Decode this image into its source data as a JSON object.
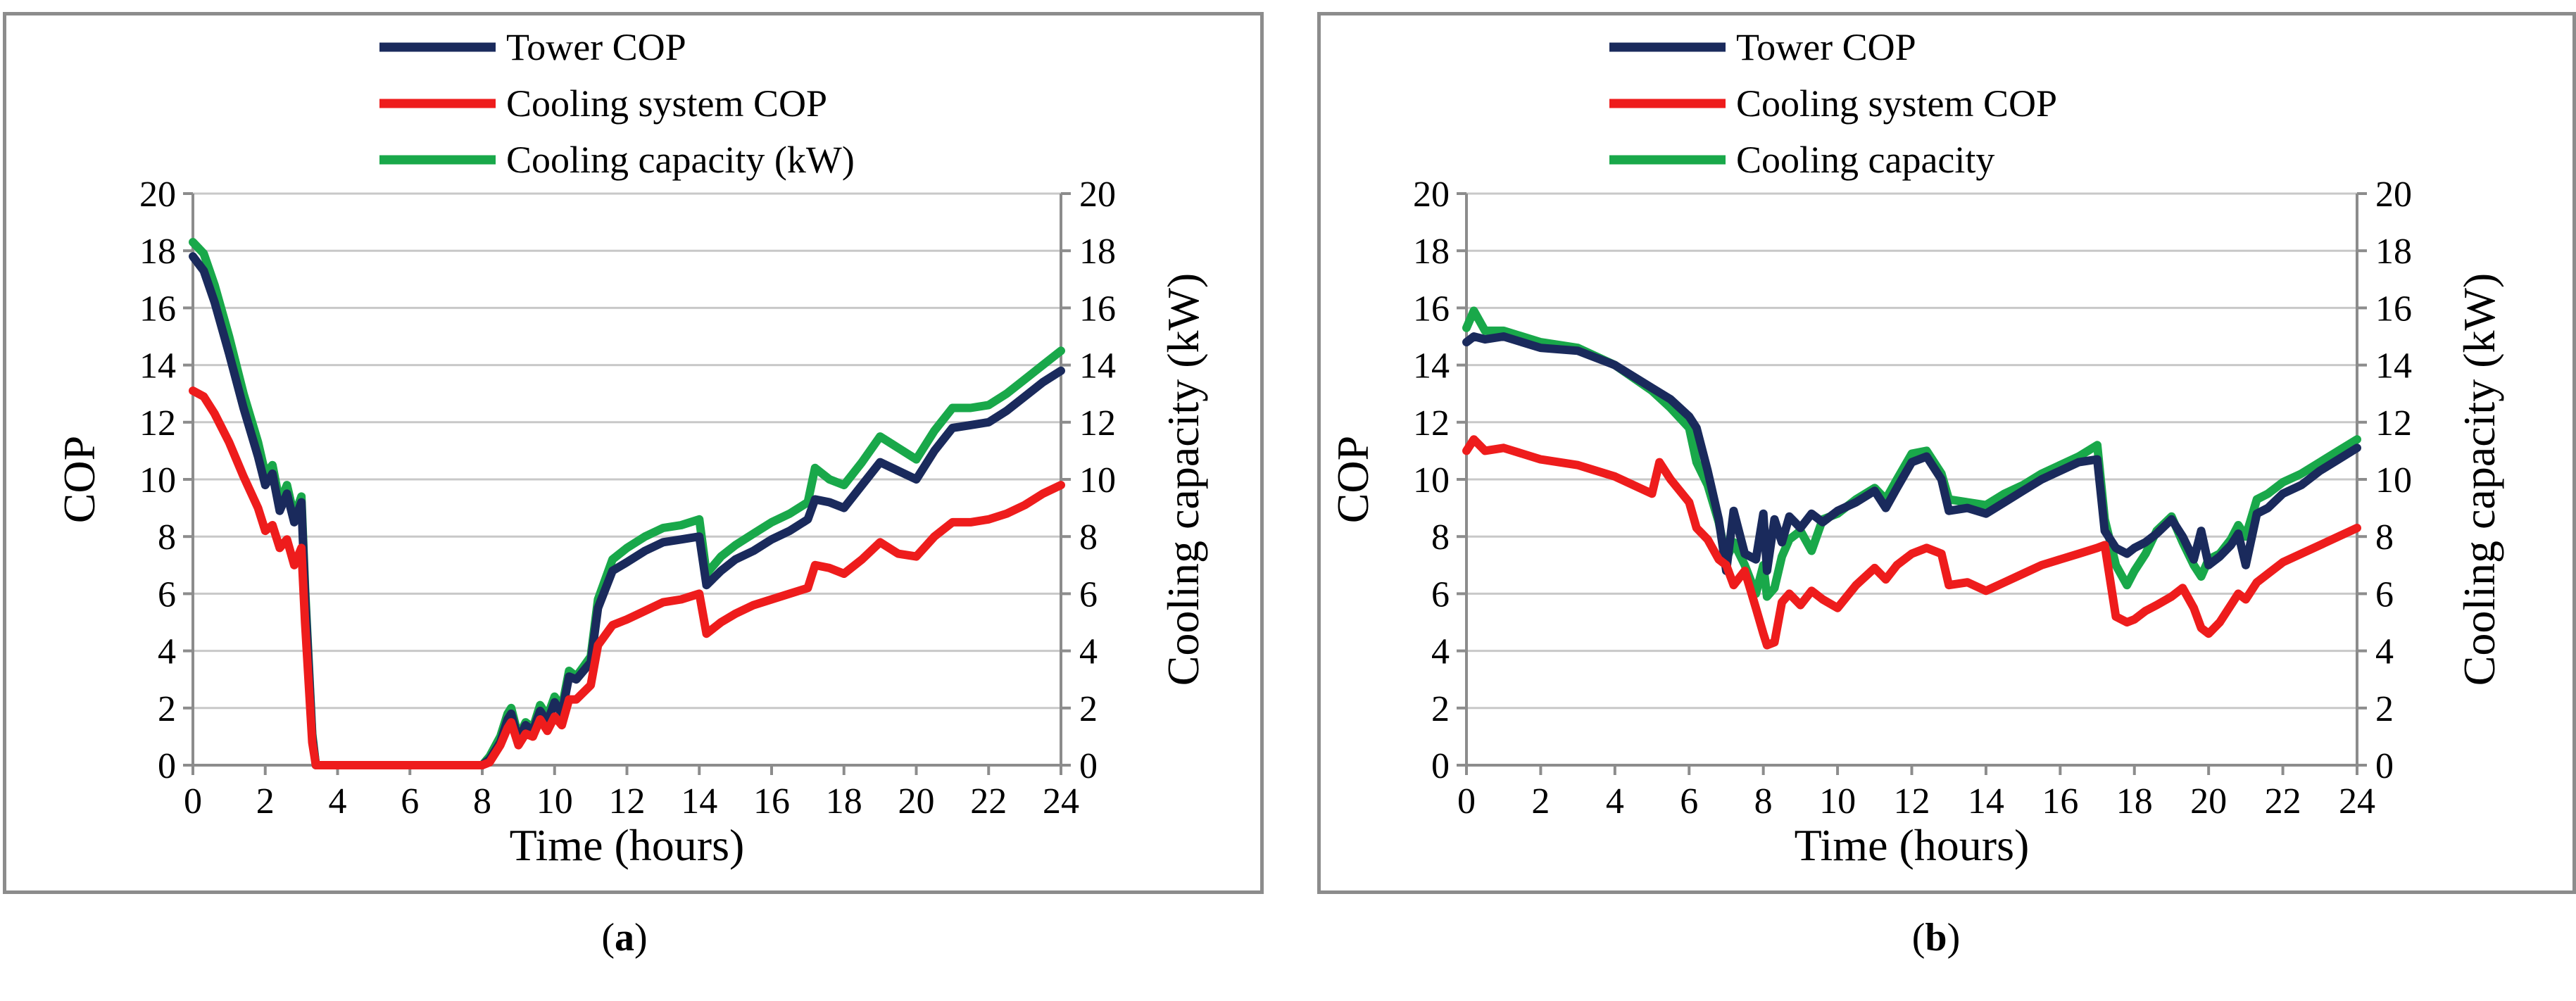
{
  "colors": {
    "tower": "#1a2a5c",
    "cooling_system": "#ee1c1c",
    "capacity": "#19a84a",
    "grid": "#c8c8c8",
    "axis": "#8c8c8c",
    "frame": "#8c8c8c"
  },
  "captions": {
    "a_letter": "a",
    "b_letter": "b"
  },
  "chart_data": [
    {
      "type": "line",
      "id": "a",
      "xlabel": "Time (hours)",
      "ylabel": "COP",
      "y2label": "Cooling capacity (kW)",
      "xlim": [
        0,
        24
      ],
      "ylim": [
        0,
        20
      ],
      "y2lim": [
        0,
        20
      ],
      "xticks": [
        "0",
        "2",
        "4",
        "6",
        "8",
        "10",
        "12",
        "14",
        "16",
        "18",
        "20",
        "22",
        "24"
      ],
      "yticks": [
        "0",
        "2",
        "4",
        "6",
        "8",
        "10",
        "12",
        "14",
        "16",
        "18",
        "20"
      ],
      "y2ticks": [
        "0",
        "2",
        "4",
        "6",
        "8",
        "10",
        "12",
        "14",
        "16",
        "18",
        "20"
      ],
      "legend_position": "top-center",
      "grid": true,
      "series": [
        {
          "name": "Tower COP",
          "color_key": "tower",
          "axis": "left",
          "x": [
            0,
            0.3,
            0.6,
            1,
            1.4,
            1.8,
            2,
            2.2,
            2.4,
            2.6,
            2.8,
            3,
            3.1,
            3.3,
            3.4,
            4,
            5,
            6,
            7,
            8,
            8.2,
            8.5,
            8.7,
            8.8,
            9,
            9.2,
            9.4,
            9.6,
            9.8,
            10,
            10.2,
            10.4,
            10.6,
            11,
            11.2,
            11.6,
            12,
            12.5,
            13,
            13.5,
            14,
            14.2,
            14.6,
            15,
            15.5,
            16,
            16.5,
            17,
            17.2,
            17.6,
            18,
            18.5,
            19,
            19.5,
            20,
            20.5,
            21,
            21.5,
            22,
            22.5,
            23,
            23.5,
            24
          ],
          "y": [
            17.8,
            17.3,
            16.2,
            14.4,
            12.5,
            10.8,
            9.8,
            10.2,
            8.9,
            9.5,
            8.5,
            9.2,
            6.0,
            1.0,
            0,
            0,
            0,
            0,
            0,
            0,
            0.2,
            0.8,
            1.6,
            1.8,
            0.9,
            1.4,
            1.2,
            1.9,
            1.5,
            2.2,
            1.8,
            3.1,
            3.0,
            3.6,
            5.5,
            6.8,
            7.1,
            7.5,
            7.8,
            7.9,
            8.0,
            6.3,
            6.8,
            7.2,
            7.5,
            7.9,
            8.2,
            8.6,
            9.3,
            9.2,
            9.0,
            9.8,
            10.6,
            10.3,
            10.0,
            11.0,
            11.8,
            11.9,
            12.0,
            12.4,
            12.9,
            13.4,
            13.8
          ]
        },
        {
          "name": "Cooling system COP",
          "color_key": "cooling_system",
          "axis": "left",
          "x": [
            0,
            0.3,
            0.6,
            1,
            1.4,
            1.8,
            2,
            2.2,
            2.4,
            2.6,
            2.8,
            3,
            3.1,
            3.3,
            3.4,
            4,
            5,
            6,
            7,
            8,
            8.2,
            8.5,
            8.7,
            8.8,
            9,
            9.2,
            9.4,
            9.6,
            9.8,
            10,
            10.2,
            10.4,
            10.6,
            11,
            11.2,
            11.6,
            12,
            12.5,
            13,
            13.5,
            14,
            14.2,
            14.6,
            15,
            15.5,
            16,
            16.5,
            17,
            17.2,
            17.6,
            18,
            18.5,
            19,
            19.5,
            20,
            20.5,
            21,
            21.5,
            22,
            22.5,
            23,
            23.5,
            24
          ],
          "y": [
            13.1,
            12.9,
            12.3,
            11.3,
            10.1,
            9.0,
            8.2,
            8.4,
            7.6,
            7.9,
            7.0,
            7.6,
            5.0,
            0.8,
            0,
            0,
            0,
            0,
            0,
            0,
            0.1,
            0.7,
            1.3,
            1.5,
            0.7,
            1.1,
            1.0,
            1.6,
            1.2,
            1.7,
            1.4,
            2.3,
            2.3,
            2.8,
            4.2,
            4.9,
            5.1,
            5.4,
            5.7,
            5.8,
            6.0,
            4.6,
            5.0,
            5.3,
            5.6,
            5.8,
            6.0,
            6.2,
            7.0,
            6.9,
            6.7,
            7.2,
            7.8,
            7.4,
            7.3,
            8.0,
            8.5,
            8.5,
            8.6,
            8.8,
            9.1,
            9.5,
            9.8
          ]
        },
        {
          "name": "Cooling capacity (kW)",
          "color_key": "capacity",
          "axis": "right",
          "x": [
            0,
            0.3,
            0.6,
            1,
            1.4,
            1.8,
            2,
            2.2,
            2.4,
            2.6,
            2.8,
            3,
            3.1,
            3.3,
            3.4,
            4,
            5,
            6,
            7,
            8,
            8.2,
            8.5,
            8.7,
            8.8,
            9,
            9.2,
            9.4,
            9.6,
            9.8,
            10,
            10.2,
            10.4,
            10.6,
            11,
            11.2,
            11.6,
            12,
            12.5,
            13,
            13.5,
            14,
            14.2,
            14.6,
            15,
            15.5,
            16,
            16.5,
            17,
            17.2,
            17.6,
            18,
            18.5,
            19,
            19.5,
            20,
            20.5,
            21,
            21.5,
            22,
            22.5,
            23,
            23.5,
            24
          ],
          "y": [
            18.3,
            17.9,
            16.8,
            15.0,
            13.0,
            11.3,
            10.2,
            10.5,
            9.2,
            9.8,
            8.7,
            9.4,
            6.2,
            1.1,
            0,
            0,
            0,
            0,
            0,
            0,
            0.3,
            1.0,
            1.8,
            2.0,
            1.0,
            1.5,
            1.3,
            2.1,
            1.7,
            2.4,
            2.0,
            3.3,
            3.1,
            3.8,
            5.8,
            7.2,
            7.6,
            8.0,
            8.3,
            8.4,
            8.6,
            6.7,
            7.3,
            7.7,
            8.1,
            8.5,
            8.8,
            9.2,
            10.4,
            10.0,
            9.8,
            10.6,
            11.5,
            11.1,
            10.7,
            11.7,
            12.5,
            12.5,
            12.6,
            13.0,
            13.5,
            14.0,
            14.5
          ]
        }
      ]
    },
    {
      "type": "line",
      "id": "b",
      "xlabel": "Time (hours)",
      "ylabel": "COP",
      "y2label": "Cooling capacity (kW)",
      "xlim": [
        0,
        24
      ],
      "ylim": [
        0,
        20
      ],
      "y2lim": [
        0,
        20
      ],
      "xticks": [
        "0",
        "2",
        "4",
        "6",
        "8",
        "10",
        "12",
        "14",
        "16",
        "18",
        "20",
        "22",
        "24"
      ],
      "yticks": [
        "0",
        "2",
        "4",
        "6",
        "8",
        "10",
        "12",
        "14",
        "16",
        "18",
        "20"
      ],
      "y2ticks": [
        "0",
        "2",
        "4",
        "6",
        "8",
        "10",
        "12",
        "14",
        "16",
        "18",
        "20"
      ],
      "legend_position": "top-center",
      "grid": true,
      "series": [
        {
          "name": "Tower COP",
          "color_key": "tower",
          "axis": "left",
          "x": [
            0,
            0.2,
            0.5,
            1,
            2,
            3,
            4,
            5,
            5.5,
            6,
            6.2,
            6.5,
            6.8,
            7,
            7.2,
            7.5,
            7.8,
            8,
            8.1,
            8.3,
            8.5,
            8.7,
            9,
            9.3,
            9.6,
            10,
            10.5,
            11,
            11.3,
            11.6,
            12,
            12.4,
            12.8,
            13,
            13.5,
            14,
            14.5,
            15,
            15.5,
            16,
            16.5,
            17,
            17.2,
            17.5,
            17.8,
            18,
            18.3,
            18.6,
            19,
            19.3,
            19.6,
            19.8,
            20,
            20.3,
            20.6,
            20.8,
            21,
            21.3,
            21.6,
            22,
            22.5,
            23,
            23.5,
            24
          ],
          "y": [
            14.8,
            15.0,
            14.9,
            15.0,
            14.6,
            14.5,
            14.0,
            13.2,
            12.8,
            12.2,
            11.8,
            10.3,
            8.6,
            6.8,
            8.9,
            7.4,
            7.2,
            8.8,
            6.8,
            8.6,
            7.8,
            8.7,
            8.3,
            8.8,
            8.5,
            8.9,
            9.2,
            9.6,
            9.0,
            9.7,
            10.6,
            10.8,
            10.0,
            8.9,
            9.0,
            8.8,
            9.2,
            9.6,
            10.0,
            10.3,
            10.6,
            10.7,
            8.2,
            7.6,
            7.4,
            7.6,
            7.8,
            8.1,
            8.6,
            8.0,
            7.2,
            8.2,
            7.0,
            7.3,
            7.7,
            8.1,
            7.0,
            8.8,
            9.0,
            9.5,
            9.8,
            10.3,
            10.7,
            11.1
          ]
        },
        {
          "name": "Cooling system COP",
          "color_key": "cooling_system",
          "axis": "left",
          "x": [
            0,
            0.2,
            0.5,
            1,
            2,
            3,
            4,
            5,
            5.2,
            5.5,
            6,
            6.2,
            6.5,
            6.8,
            7,
            7.2,
            7.5,
            7.8,
            8,
            8.1,
            8.3,
            8.5,
            8.7,
            9,
            9.3,
            9.6,
            10,
            10.5,
            11,
            11.3,
            11.6,
            12,
            12.4,
            12.8,
            13,
            13.5,
            14,
            14.5,
            15,
            15.5,
            16,
            16.5,
            17,
            17.2,
            17.5,
            17.8,
            18,
            18.3,
            18.6,
            19,
            19.3,
            19.6,
            19.8,
            20,
            20.3,
            20.6,
            20.8,
            21,
            21.3,
            21.6,
            22,
            22.5,
            23,
            23.5,
            24
          ],
          "y": [
            11.0,
            11.4,
            11.0,
            11.1,
            10.7,
            10.5,
            10.1,
            9.5,
            10.6,
            10.0,
            9.2,
            8.3,
            7.9,
            7.2,
            7.0,
            6.3,
            6.8,
            5.5,
            4.6,
            4.2,
            4.3,
            5.7,
            6.0,
            5.6,
            6.1,
            5.8,
            5.5,
            6.3,
            6.9,
            6.5,
            7.0,
            7.4,
            7.6,
            7.4,
            6.3,
            6.4,
            6.1,
            6.4,
            6.7,
            7.0,
            7.2,
            7.4,
            7.6,
            7.7,
            5.2,
            5.0,
            5.1,
            5.4,
            5.6,
            5.9,
            6.2,
            5.5,
            4.8,
            4.6,
            5.0,
            5.6,
            6.0,
            5.8,
            6.4,
            6.7,
            7.1,
            7.4,
            7.7,
            8.0,
            8.3
          ]
        },
        {
          "name": "Cooling capacity",
          "color_key": "capacity",
          "axis": "right",
          "x": [
            0,
            0.2,
            0.5,
            1,
            2,
            3,
            4,
            5,
            5.5,
            6,
            6.2,
            6.5,
            6.8,
            7,
            7.2,
            7.5,
            7.8,
            8,
            8.1,
            8.3,
            8.5,
            8.7,
            9,
            9.3,
            9.6,
            10,
            10.5,
            11,
            11.3,
            11.6,
            12,
            12.4,
            12.8,
            13,
            13.5,
            14,
            14.5,
            15,
            15.5,
            16,
            16.5,
            17,
            17.2,
            17.5,
            17.8,
            18,
            18.3,
            18.6,
            19,
            19.3,
            19.6,
            19.8,
            20,
            20.3,
            20.6,
            20.8,
            21,
            21.3,
            21.6,
            22,
            22.5,
            23,
            23.5,
            24
          ],
          "y": [
            15.3,
            15.9,
            15.2,
            15.2,
            14.8,
            14.6,
            14.0,
            13.1,
            12.5,
            11.8,
            10.6,
            9.8,
            8.5,
            7.2,
            7.8,
            7.0,
            6.0,
            7.0,
            5.9,
            6.2,
            7.3,
            7.9,
            8.2,
            7.5,
            8.6,
            8.8,
            9.3,
            9.7,
            9.3,
            10.0,
            10.9,
            11.0,
            10.2,
            9.3,
            9.2,
            9.1,
            9.5,
            9.8,
            10.2,
            10.5,
            10.8,
            11.2,
            8.6,
            7.0,
            6.3,
            6.8,
            7.4,
            8.2,
            8.7,
            7.8,
            7.0,
            6.6,
            7.2,
            7.4,
            7.9,
            8.4,
            8.0,
            9.3,
            9.5,
            9.9,
            10.2,
            10.6,
            11.0,
            11.4
          ]
        }
      ]
    }
  ]
}
